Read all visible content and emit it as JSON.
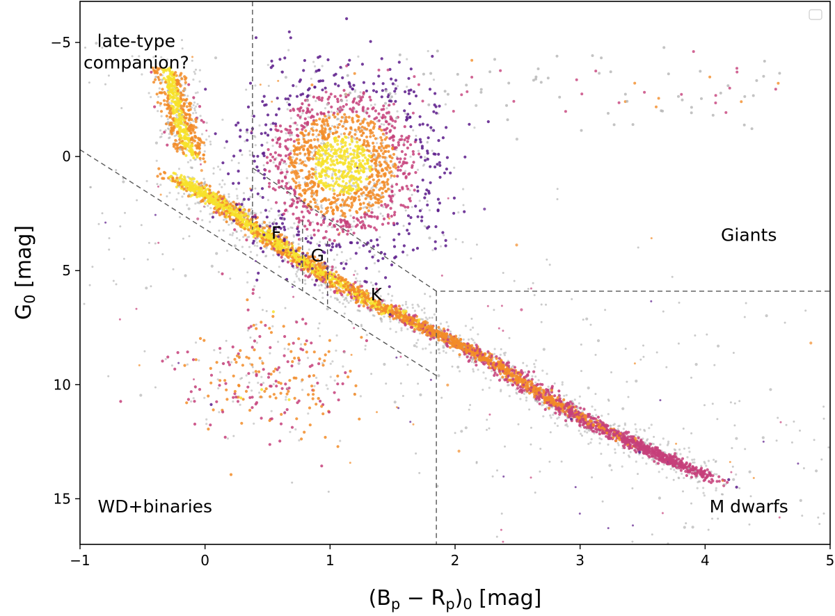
{
  "chart_data": {
    "type": "scatter",
    "title": "",
    "xlabel": "(B_p − R_p)_0 [mag]",
    "ylabel": "G_0 [mag]",
    "xlim": [
      -1,
      5
    ],
    "ylim": [
      17,
      -6.8
    ],
    "y_inverted": true,
    "grid": false,
    "legend": "empty box, top-right",
    "x_ticks": [
      -1,
      0,
      1,
      2,
      3,
      4,
      5
    ],
    "x_tick_labels": [
      "−1",
      "0",
      "1",
      "2",
      "3",
      "4",
      "5"
    ],
    "y_ticks": [
      -5,
      0,
      5,
      10,
      15
    ],
    "y_tick_labels": [
      "−5",
      "0",
      "5",
      "10",
      "15"
    ],
    "colors": {
      "background_points": "#b4b4b4",
      "low_density": "#5b1a8a",
      "mid_density": "#c6407a",
      "high_density": "#f28c28",
      "peak_density": "#f7e22a",
      "reference_lines": "#555555"
    },
    "density_structures": [
      {
        "name": "main sequence",
        "path": [
          [
            -0.2,
            1.0
          ],
          [
            0.1,
            2.0
          ],
          [
            0.5,
            3.5
          ],
          [
            0.9,
            5.0
          ],
          [
            1.3,
            6.3
          ],
          [
            1.8,
            7.6
          ],
          [
            2.3,
            9.0
          ],
          [
            2.8,
            10.8
          ],
          [
            3.2,
            12.0
          ],
          [
            3.6,
            13.0
          ],
          [
            4.0,
            14.0
          ]
        ],
        "spread": 0.55,
        "color_scale": "orange-to-purple"
      },
      {
        "name": "red clump and giant branch",
        "center": [
          1.1,
          0.4
        ],
        "spread_x": 0.35,
        "spread_y": 1.9,
        "color_scale": "yellow-to-purple"
      },
      {
        "name": "upper main sequence",
        "path": [
          [
            -0.3,
            -3.8
          ],
          [
            -0.2,
            -1.5
          ],
          [
            -0.1,
            0.0
          ]
        ],
        "spread": 0.35,
        "color_scale": "orange-to-purple"
      },
      {
        "name": "white dwarf and binary sequence",
        "center": [
          0.5,
          9.8
        ],
        "spread_x": 0.35,
        "spread_y": 1.4,
        "color_scale": "orange"
      }
    ],
    "reference_lines": [
      {
        "name": "upper-left vertical",
        "points": [
          [
            0.38,
            -6.8
          ],
          [
            0.38,
            3.2
          ]
        ]
      },
      {
        "name": "lower main-sequence boundary",
        "points": [
          [
            -1.0,
            -0.3
          ],
          [
            1.85,
            9.6
          ]
        ]
      },
      {
        "name": "upper main-sequence boundary",
        "points": [
          [
            0.38,
            0.5
          ],
          [
            1.85,
            5.9
          ],
          [
            5.0,
            5.9
          ]
        ]
      },
      {
        "name": "F/G boundary",
        "points": [
          [
            0.78,
            2.8
          ],
          [
            0.78,
            5.9
          ]
        ]
      },
      {
        "name": "G/K boundary",
        "points": [
          [
            0.98,
            3.7
          ],
          [
            0.98,
            6.5
          ]
        ]
      },
      {
        "name": "K/M boundary",
        "points": [
          [
            1.85,
            5.9
          ],
          [
            1.85,
            17.0
          ]
        ]
      }
    ],
    "annotations": [
      {
        "id": "late",
        "lines": [
          "late-type",
          "companion?"
        ],
        "x": -0.55,
        "y": -4.8
      },
      {
        "id": "F",
        "lines": [
          "F"
        ],
        "x": 0.57,
        "y": 3.6
      },
      {
        "id": "G",
        "lines": [
          "G"
        ],
        "x": 0.9,
        "y": 4.6
      },
      {
        "id": "K",
        "lines": [
          "K"
        ],
        "x": 1.37,
        "y": 6.3
      },
      {
        "id": "giants",
        "lines": [
          "Giants"
        ],
        "x": 4.35,
        "y": 3.7
      },
      {
        "id": "wd",
        "lines": [
          "WD+binaries"
        ],
        "x": -0.4,
        "y": 15.6
      },
      {
        "id": "mdwarfs",
        "lines": [
          "M dwarfs"
        ],
        "x": 4.35,
        "y": 15.6
      }
    ]
  }
}
